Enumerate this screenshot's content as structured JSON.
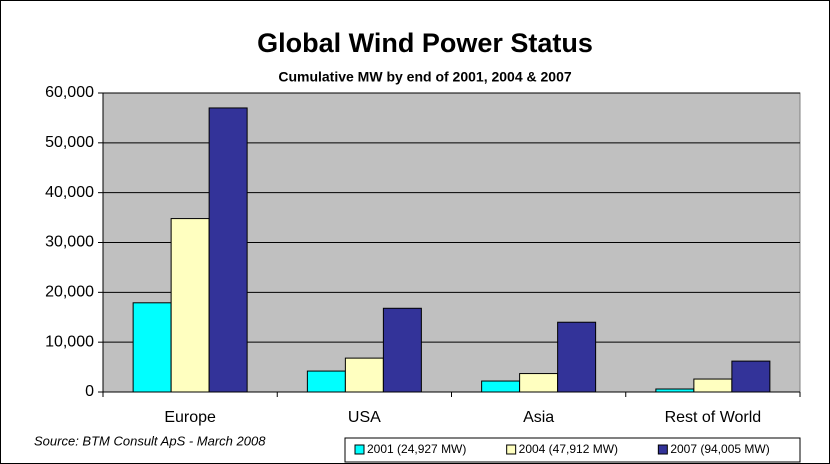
{
  "chart_data": {
    "type": "bar",
    "title": "Global Wind Power Status",
    "subtitle": "Cumulative MW by end of 2001, 2004 & 2007",
    "source": "Source: BTM Consult ApS - March 2008",
    "categories": [
      "Europe",
      "USA",
      "Asia",
      "Rest of World"
    ],
    "series": [
      {
        "name": "2001 (24,927 MW)",
        "color": "#00ffff",
        "values": [
          17900,
          4200,
          2200,
          600
        ]
      },
      {
        "name": "2004 (47,912 MW)",
        "color": "#ffffc0",
        "values": [
          34800,
          6800,
          3700,
          2600
        ]
      },
      {
        "name": "2007 (94,005 MW)",
        "color": "#333399",
        "values": [
          57000,
          16800,
          14000,
          6200
        ]
      }
    ],
    "ylim": [
      0,
      60000
    ],
    "yticks": [
      0,
      {
        "value": 10000,
        "label": "10,000"
      },
      {
        "value": 20000,
        "label": "20,000"
      },
      {
        "value": 30000,
        "label": "30,000"
      },
      {
        "value": 40000,
        "label": "40,000"
      },
      {
        "value": 50000,
        "label": "50,000"
      },
      {
        "value": 60000,
        "label": "60,000"
      }
    ],
    "grid": true,
    "plot_background": "#c0c0c0",
    "legend": "bottom-right"
  }
}
